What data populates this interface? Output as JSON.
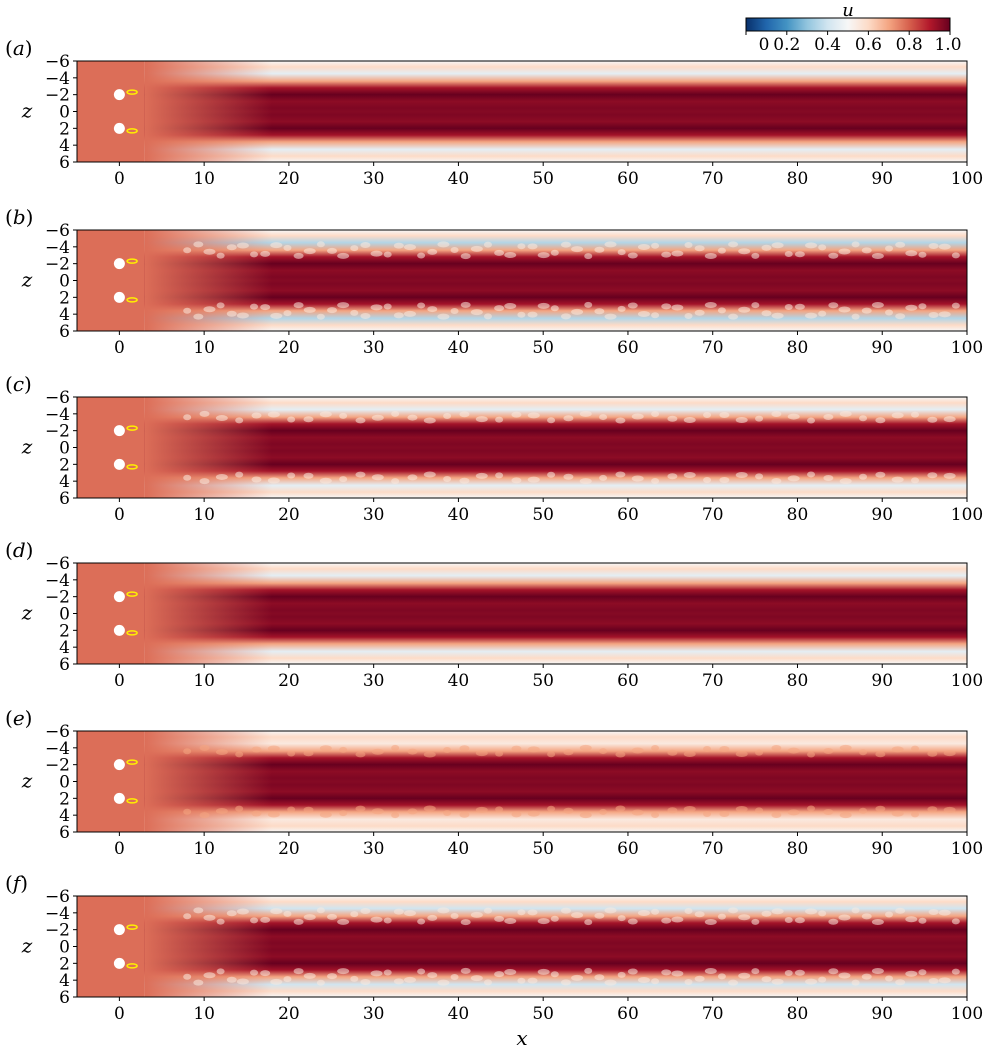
{
  "colorbar": {
    "label": "u",
    "ticks": [
      "0",
      "0.2",
      "0.4",
      "0.6",
      "0.8",
      "1.0"
    ],
    "tick_values": [
      0,
      0.2,
      0.4,
      0.6,
      0.8,
      1.0
    ],
    "range": [
      0,
      1.0
    ],
    "colormap": [
      "#08306b",
      "#2166ac",
      "#4393c3",
      "#92c5de",
      "#d1e5f0",
      "#f7f7f7",
      "#fddbc7",
      "#f4a582",
      "#d6604d",
      "#b2182b",
      "#67001f"
    ]
  },
  "chart_data": [
    {
      "type": "heatmap",
      "panel": "(a)",
      "xlabel": "",
      "ylabel": "z",
      "xlim": [
        -5,
        100
      ],
      "ylim": [
        6,
        -6
      ],
      "x_ticks": [
        0,
        10,
        20,
        30,
        40,
        50,
        60,
        70,
        80,
        90,
        100
      ],
      "y_ticks": [
        -6,
        -4,
        -2,
        0,
        2,
        4,
        6
      ],
      "cylinders_z": [
        -2,
        2
      ],
      "background_u": 0.78,
      "wake_centre_u": 1.0,
      "shear_layer_u": 0.45,
      "wake_style": "steady"
    },
    {
      "type": "heatmap",
      "panel": "(b)",
      "xlabel": "",
      "ylabel": "z",
      "xlim": [
        -5,
        100
      ],
      "ylim": [
        6,
        -6
      ],
      "x_ticks": [
        0,
        10,
        20,
        30,
        40,
        50,
        60,
        70,
        80,
        90,
        100
      ],
      "y_ticks": [
        -6,
        -4,
        -2,
        0,
        2,
        4,
        6
      ],
      "cylinders_z": [
        -2,
        2
      ],
      "background_u": 0.78,
      "wake_centre_u": 1.0,
      "shear_layer_u": 0.35,
      "wake_style": "turbulent"
    },
    {
      "type": "heatmap",
      "panel": "(c)",
      "xlabel": "",
      "ylabel": "z",
      "xlim": [
        -5,
        100
      ],
      "ylim": [
        6,
        -6
      ],
      "x_ticks": [
        0,
        10,
        20,
        30,
        40,
        50,
        60,
        70,
        80,
        90,
        100
      ],
      "y_ticks": [
        -6,
        -4,
        -2,
        0,
        2,
        4,
        6
      ],
      "cylinders_z": [
        -2,
        2
      ],
      "background_u": 0.78,
      "wake_centre_u": 1.0,
      "shear_layer_u": 0.45,
      "wake_style": "periodic"
    },
    {
      "type": "heatmap",
      "panel": "(d)",
      "xlabel": "",
      "ylabel": "z",
      "xlim": [
        -5,
        100
      ],
      "ylim": [
        6,
        -6
      ],
      "x_ticks": [
        0,
        10,
        20,
        30,
        40,
        50,
        60,
        70,
        80,
        90,
        100
      ],
      "y_ticks": [
        -6,
        -4,
        -2,
        0,
        2,
        4,
        6
      ],
      "cylinders_z": [
        -2,
        2
      ],
      "background_u": 0.78,
      "wake_centre_u": 1.0,
      "shear_layer_u": 0.45,
      "wake_style": "steady"
    },
    {
      "type": "heatmap",
      "panel": "(e)",
      "xlabel": "",
      "ylabel": "z",
      "xlim": [
        -5,
        100
      ],
      "ylim": [
        6,
        -6
      ],
      "x_ticks": [
        0,
        10,
        20,
        30,
        40,
        50,
        60,
        70,
        80,
        90,
        100
      ],
      "y_ticks": [
        -6,
        -4,
        -2,
        0,
        2,
        4,
        6
      ],
      "cylinders_z": [
        -2,
        2
      ],
      "background_u": 0.78,
      "wake_centre_u": 1.0,
      "shear_layer_u": 0.55,
      "wake_style": "vortex-street"
    },
    {
      "type": "heatmap",
      "panel": "(f)",
      "xlabel": "x",
      "ylabel": "z",
      "xlim": [
        -5,
        100
      ],
      "ylim": [
        6,
        -6
      ],
      "x_ticks": [
        0,
        10,
        20,
        30,
        40,
        50,
        60,
        70,
        80,
        90,
        100
      ],
      "y_ticks": [
        -6,
        -4,
        -2,
        0,
        2,
        4,
        6
      ],
      "cylinders_z": [
        -2,
        2
      ],
      "background_u": 0.78,
      "wake_centre_u": 1.0,
      "shear_layer_u": 0.4,
      "wake_style": "turbulent"
    }
  ]
}
